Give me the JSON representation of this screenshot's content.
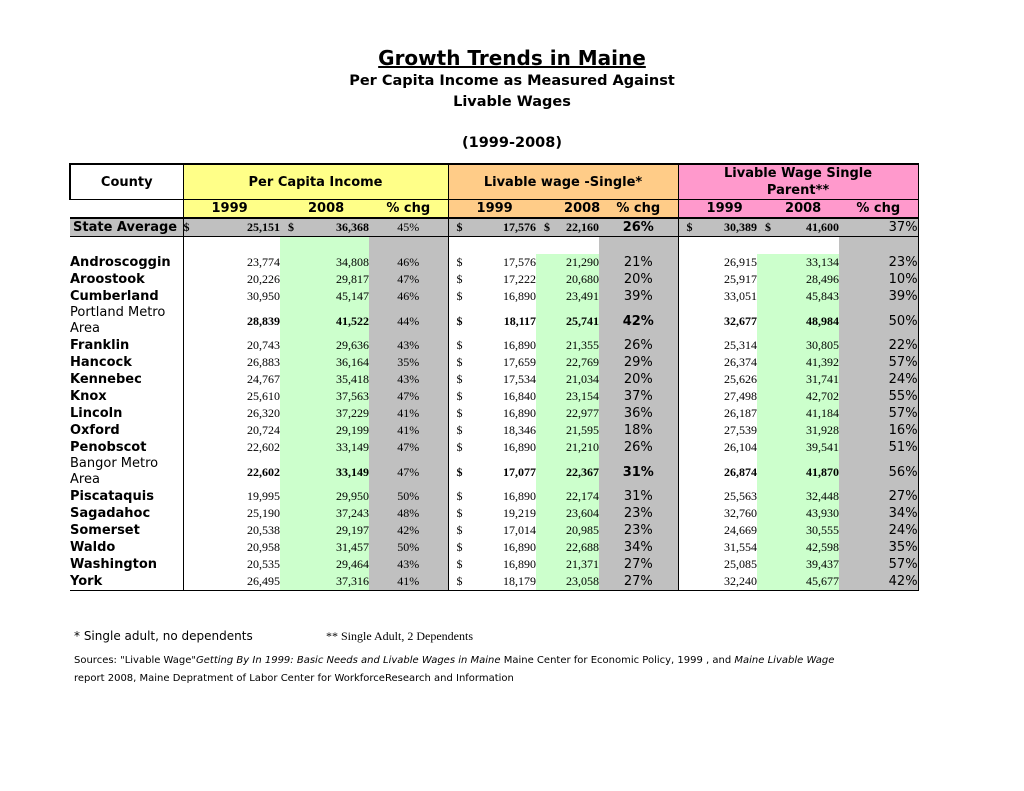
{
  "title": "Growth Trends in Maine",
  "subtitle1": "Per Capita Income as Measured Against",
  "subtitle2": "Livable Wages",
  "period": "(1999-2008)",
  "headers": {
    "county": "County",
    "pci": "Per Capita Income",
    "single": "Livable wage -Single*",
    "parent_line1": "Livable Wage Single",
    "parent_line2": "Parent**",
    "y1": "1999",
    "y2": "2008",
    "chg": "% chg"
  },
  "dollar": "$",
  "state": {
    "name": "State Average",
    "pci99": "25,151",
    "pci08": "36,368",
    "pcichg": "45%",
    "s99": "17,576",
    "s08": "22,160",
    "schg": "26%",
    "p99": "30,389",
    "p08": "41,600",
    "pchg": "37%"
  },
  "rows": [
    {
      "name": "Androscoggin",
      "pci99": "23,774",
      "pci08": "34,808",
      "pcichg": "46%",
      "s99": "17,576",
      "s08": "21,290",
      "schg": "21%",
      "p99": "26,915",
      "p08": "33,134",
      "pchg": "23%"
    },
    {
      "name": "Aroostook",
      "pci99": "20,226",
      "pci08": "29,817",
      "pcichg": "47%",
      "s99": "17,222",
      "s08": "20,680",
      "schg": "20%",
      "p99": "25,917",
      "p08": "28,496",
      "pchg": "10%"
    },
    {
      "name": "Cumberland",
      "pci99": "30,950",
      "pci08": "45,147",
      "pcichg": "46%",
      "s99": "16,890",
      "s08": "23,491",
      "schg": "39%",
      "p99": "33,051",
      "p08": "45,843",
      "pchg": "39%"
    },
    {
      "name": "Portland Metro Area",
      "metro": true,
      "pci99": "28,839",
      "pci08": "41,522",
      "pcichg": "44%",
      "s99": "18,117",
      "s08": "25,741",
      "schg": "42%",
      "p99": "32,677",
      "p08": "48,984",
      "pchg": "50%"
    },
    {
      "name": "Franklin",
      "pci99": "20,743",
      "pci08": "29,636",
      "pcichg": "43%",
      "s99": "16,890",
      "s08": "21,355",
      "schg": "26%",
      "p99": "25,314",
      "p08": "30,805",
      "pchg": "22%"
    },
    {
      "name": "Hancock",
      "pci99": "26,883",
      "pci08": "36,164",
      "pcichg": "35%",
      "s99": "17,659",
      "s08": "22,769",
      "schg": "29%",
      "p99": "26,374",
      "p08": "41,392",
      "pchg": "57%"
    },
    {
      "name": "Kennebec",
      "pci99": "24,767",
      "pci08": "35,418",
      "pcichg": "43%",
      "s99": "17,534",
      "s08": "21,034",
      "schg": "20%",
      "p99": "25,626",
      "p08": "31,741",
      "pchg": "24%"
    },
    {
      "name": "Knox",
      "pci99": "25,610",
      "pci08": "37,563",
      "pcichg": "47%",
      "s99": "16,840",
      "s08": "23,154",
      "schg": "37%",
      "p99": "27,498",
      "p08": "42,702",
      "pchg": "55%"
    },
    {
      "name": "Lincoln",
      "pci99": "26,320",
      "pci08": "37,229",
      "pcichg": "41%",
      "s99": "16,890",
      "s08": "22,977",
      "schg": "36%",
      "p99": "26,187",
      "p08": "41,184",
      "pchg": "57%"
    },
    {
      "name": "Oxford",
      "pci99": "20,724",
      "pci08": "29,199",
      "pcichg": "41%",
      "s99": "18,346",
      "s08": "21,595",
      "schg": "18%",
      "p99": "27,539",
      "p08": "31,928",
      "pchg": "16%"
    },
    {
      "name": "Penobscot",
      "pci99": "22,602",
      "pci08": "33,149",
      "pcichg": "47%",
      "s99": "16,890",
      "s08": "21,210",
      "schg": "26%",
      "p99": "26,104",
      "p08": "39,541",
      "pchg": "51%"
    },
    {
      "name": "Bangor Metro Area",
      "metro": true,
      "pci99": "22,602",
      "pci08": "33,149",
      "pcichg": "47%",
      "s99": "17,077",
      "s08": "22,367",
      "schg": "31%",
      "p99": "26,874",
      "p08": "41,870",
      "pchg": "56%"
    },
    {
      "name": "Piscataquis",
      "pci99": "19,995",
      "pci08": "29,950",
      "pcichg": "50%",
      "s99": "16,890",
      "s08": "22,174",
      "schg": "31%",
      "p99": "25,563",
      "p08": "32,448",
      "pchg": "27%"
    },
    {
      "name": "Sagadahoc",
      "pci99": "25,190",
      "pci08": "37,243",
      "pcichg": "48%",
      "s99": "19,219",
      "s08": "23,604",
      "schg": "23%",
      "p99": "32,760",
      "p08": "43,930",
      "pchg": "34%"
    },
    {
      "name": "Somerset",
      "pci99": "20,538",
      "pci08": "29,197",
      "pcichg": "42%",
      "s99": "17,014",
      "s08": "20,985",
      "schg": "23%",
      "p99": "24,669",
      "p08": "30,555",
      "pchg": "24%"
    },
    {
      "name": "Waldo",
      "pci99": "20,958",
      "pci08": "31,457",
      "pcichg": "50%",
      "s99": "16,890",
      "s08": "22,688",
      "schg": "34%",
      "p99": "31,554",
      "p08": "42,598",
      "pchg": "35%"
    },
    {
      "name": "Washington",
      "pci99": "20,535",
      "pci08": "29,464",
      "pcichg": "43%",
      "s99": "16,890",
      "s08": "21,371",
      "schg": "27%",
      "p99": "25,085",
      "p08": "39,437",
      "pchg": "57%"
    },
    {
      "name": "York",
      "pci99": "26,495",
      "pci08": "37,316",
      "pcichg": "41%",
      "s99": "18,179",
      "s08": "23,058",
      "schg": "27%",
      "p99": "32,240",
      "p08": "45,677",
      "pchg": "42%"
    }
  ],
  "footnote1": "* Single adult, no dependents",
  "footnote2": "** Single Adult, 2 Dependents",
  "sources": {
    "prefix": "Sources: \"Livable Wage\"",
    "title1": "Getting By In 1999: Basic Needs and Livable Wages in Maine",
    "mid": " Maine Center for Economic Policy, 1999 , and ",
    "title2": "Maine Livable Wage",
    "suffix": "report 2008, Maine Depratment of Labor Center for WorkforceResearch and Information"
  }
}
